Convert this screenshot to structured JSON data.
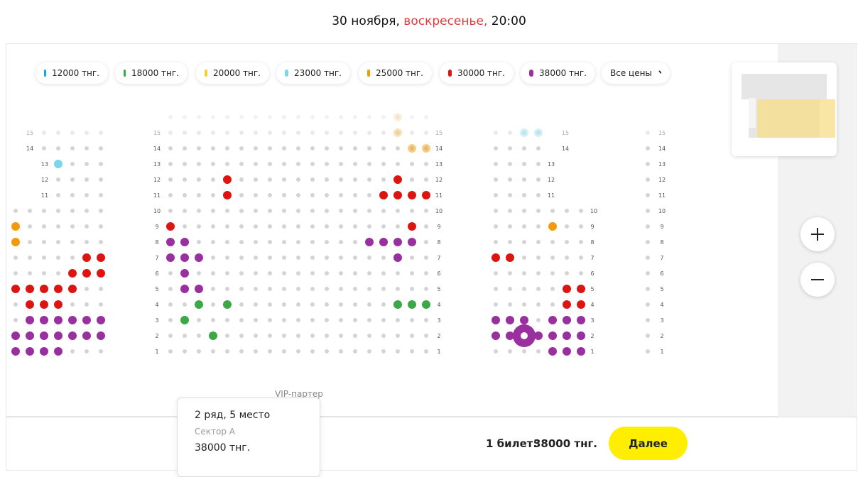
{
  "header": {
    "date": "30 ноября,",
    "weekday": "воскресенье,",
    "time": "20:00"
  },
  "legend": {
    "prices": [
      {
        "label": "12000 тнг.",
        "color": "#1a9fe6"
      },
      {
        "label": "18000 тнг.",
        "color": "#3aa845"
      },
      {
        "label": "20000 тнг.",
        "color": "#f5cf2b"
      },
      {
        "label": "23000 тнг.",
        "color": "#7dd5ec"
      },
      {
        "label": "25000 тнг.",
        "color": "#f39a0b"
      },
      {
        "label": "30000 тнг.",
        "color": "#dd1512"
      },
      {
        "label": "38000 тнг.",
        "color": "#9a2fa0"
      }
    ],
    "all_prices": "Все цены"
  },
  "seat_map": {
    "sector_label": "VIP-партер",
    "row_labels": [
      [
        "15",
        "14",
        "13",
        "12",
        "11"
      ],
      [
        "15",
        "14",
        "13",
        "12",
        "11",
        "10",
        "9",
        "8",
        "7",
        "6",
        "5",
        "4",
        "3",
        "2",
        "1"
      ],
      [
        "15",
        "14",
        "13",
        "12",
        "11",
        "10",
        "9",
        "8",
        "7",
        "6",
        "5",
        "4",
        "3",
        "2",
        "1"
      ],
      [
        "15",
        "14",
        "13",
        "12",
        "11",
        "10",
        "9",
        "8",
        "7",
        "6",
        "5",
        "4",
        "3",
        "2",
        "1"
      ],
      [
        "15",
        "14",
        "13",
        "12",
        "11",
        "10",
        "9",
        "8",
        "7",
        "6",
        "5",
        "4",
        "3",
        "2",
        "1"
      ]
    ]
  },
  "selection": {
    "seat": "2 ряд, 5 место",
    "sector": "Сектор А",
    "price": "38000 тнг."
  },
  "checkout": {
    "count": "1 билет:",
    "total": "38000 тнг.",
    "button": "Далее"
  }
}
